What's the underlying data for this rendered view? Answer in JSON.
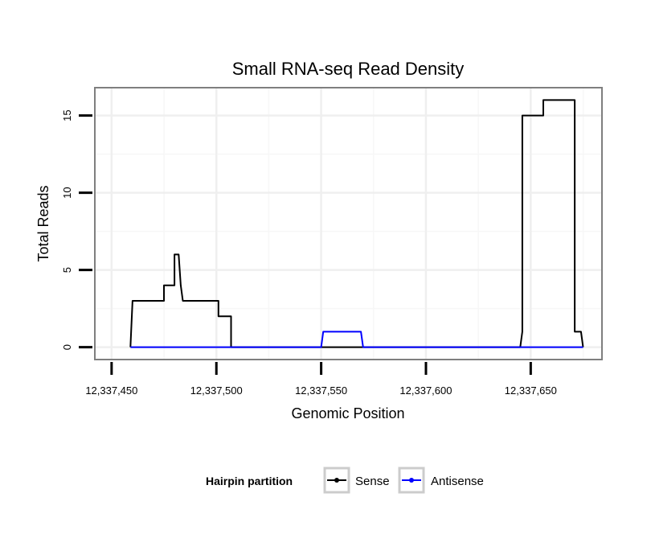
{
  "chart_data": {
    "type": "line",
    "title": "Small RNA-seq Read Density",
    "xlabel": "Genomic Position",
    "ylabel": "Total Reads",
    "xlim": [
      12337442,
      12337684
    ],
    "ylim": [
      -0.8,
      16.8
    ],
    "x_ticks": [
      12337450,
      12337500,
      12337550,
      12337600,
      12337650
    ],
    "x_tick_labels": [
      "12,337,450",
      "12,337,500",
      "12,337,550",
      "12,337,600",
      "12,337,650"
    ],
    "y_ticks": [
      0,
      5,
      10,
      15
    ],
    "y_tick_labels": [
      "0",
      "5",
      "10",
      "15"
    ],
    "grid": true,
    "legend": {
      "title": "Hairpin partition",
      "position": "bottom",
      "entries": [
        "Sense",
        "Antisense"
      ]
    },
    "series": [
      {
        "name": "Sense",
        "color": "#000000",
        "x": [
          12337459,
          12337460,
          12337475,
          12337475,
          12337480,
          12337480,
          12337482,
          12337483,
          12337484,
          12337501,
          12337501,
          12337507,
          12337507,
          12337645,
          12337646,
          12337646,
          12337656,
          12337656,
          12337671,
          12337671,
          12337674,
          12337675
        ],
        "y": [
          0,
          3,
          3,
          4,
          4,
          6,
          6,
          4,
          3,
          3,
          2,
          2,
          0,
          0,
          1,
          15,
          15,
          16,
          16,
          1,
          1,
          0
        ]
      },
      {
        "name": "Antisense",
        "color": "#0000ff",
        "x": [
          12337459,
          12337550,
          12337551,
          12337569,
          12337570,
          12337675
        ],
        "y": [
          0,
          0,
          1,
          1,
          0,
          0
        ]
      }
    ]
  }
}
